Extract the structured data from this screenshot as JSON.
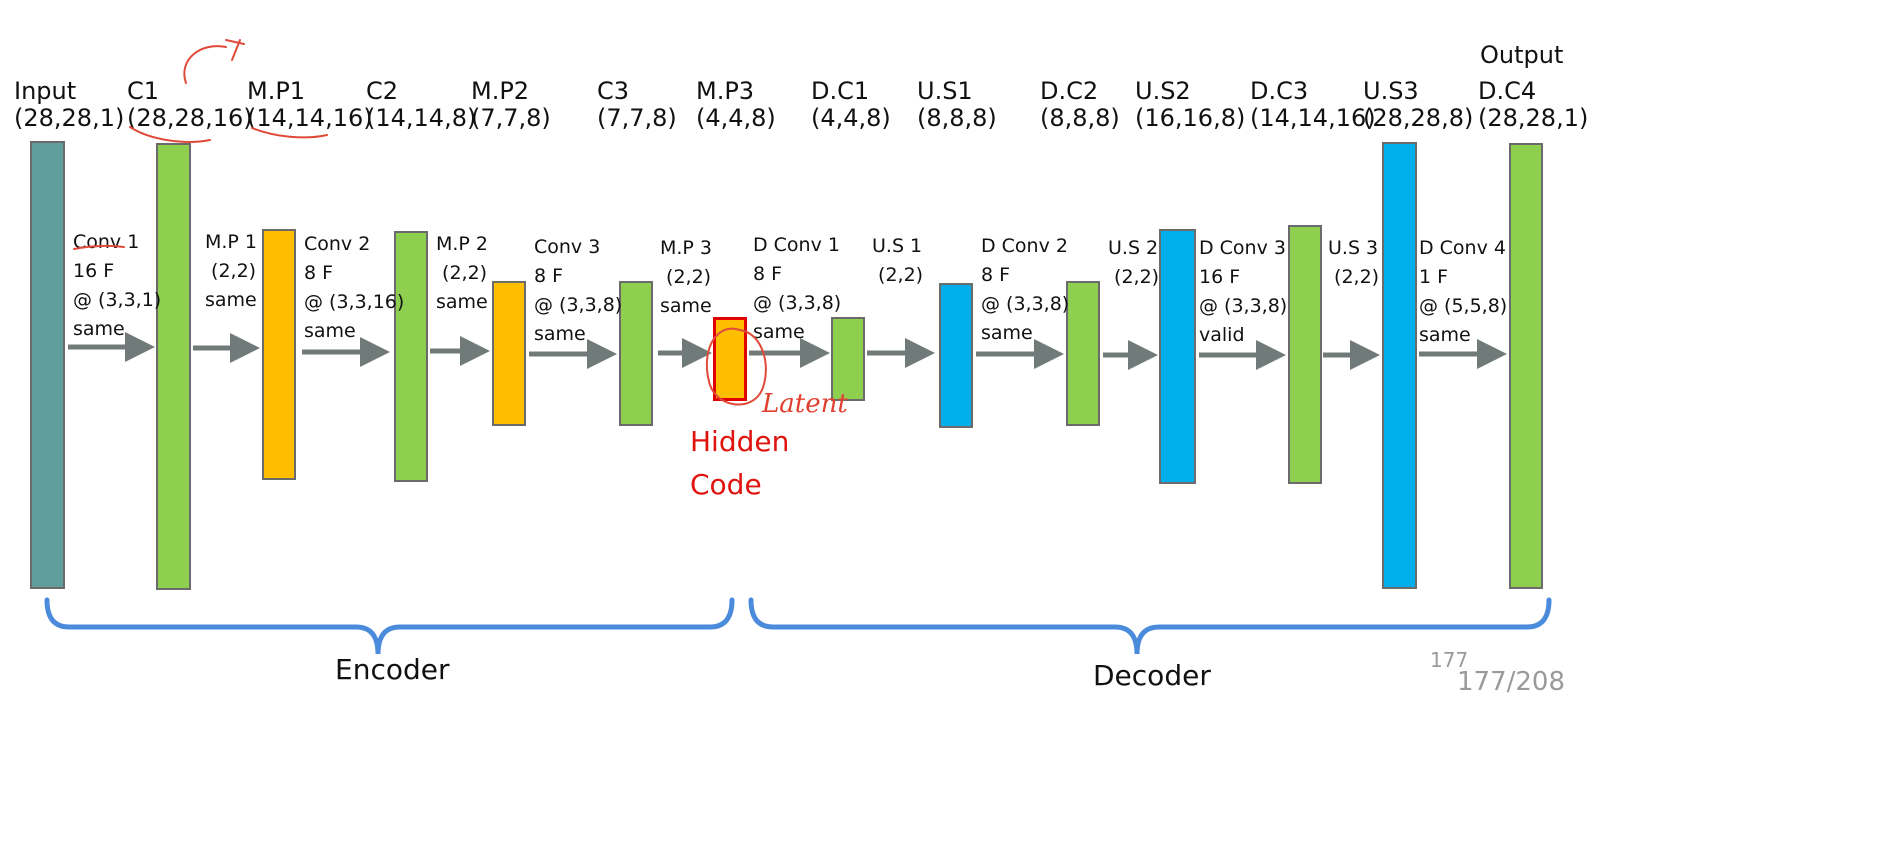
{
  "layers": [
    {
      "name": "Input",
      "dim": "(28,28,1)",
      "color": "teal"
    },
    {
      "name": "C1",
      "dim": "(28,28,16)",
      "color": "green"
    },
    {
      "name": "M.P1",
      "dim": "(14,14,16)",
      "color": "orange"
    },
    {
      "name": "C2",
      "dim": "(14,14,8)",
      "color": "green"
    },
    {
      "name": "M.P2",
      "dim": "(7,7,8)",
      "color": "orange"
    },
    {
      "name": "C3",
      "dim": "(7,7,8)",
      "color": "green"
    },
    {
      "name": "M.P3",
      "dim": "(4,4,8)",
      "color": "orange"
    },
    {
      "name": "D.C1",
      "dim": "(4,4,8)",
      "color": "green"
    },
    {
      "name": "U.S1",
      "dim": "(8,8,8)",
      "color": "blue"
    },
    {
      "name": "D.C2",
      "dim": "(8,8,8)",
      "color": "green"
    },
    {
      "name": "U.S2",
      "dim": "(16,16,8)",
      "color": "blue"
    },
    {
      "name": "D.C3",
      "dim": "(14,14,16)",
      "color": "green"
    },
    {
      "name": "U.S3",
      "dim": "(28,28,8)",
      "color": "blue"
    },
    {
      "name": "D.C4",
      "dim": "(28,28,1)",
      "color": "green"
    }
  ],
  "output_label": "Output",
  "operations": [
    "Conv 1\n16 F\n@ (3,3,1)\nsame",
    "M.P 1\n (2,2)\nsame",
    "Conv 2\n8 F\n@ (3,3,16)\nsame",
    "M.P 2\n (2,2)\nsame",
    "Conv 3\n8 F\n@ (3,3,8)\nsame",
    "M.P 3\n (2,2)\nsame",
    "D Conv 1\n8 F\n@ (3,3,8)\nsame",
    "U.S 1\n (2,2)",
    "D Conv 2\n8 F\n@ (3,3,8)\nsame",
    "U.S 2\n (2,2)",
    "D Conv 3\n16 F\n@ (3,3,8)\nvalid",
    "U.S 3\n (2,2)",
    "D Conv 4\n1 F\n@ (5,5,8)\nsame"
  ],
  "hidden_code": "Hidden\nCode",
  "annotations": {
    "latent": "Latent"
  },
  "groups": {
    "encoder": "Encoder",
    "decoder": "Decoder"
  },
  "page": {
    "small": "177",
    "full": "177/208"
  },
  "colors": {
    "teal": "#5f9e9a",
    "green": "#8fcf50",
    "orange": "#ffbf00",
    "blue": "#00aeeb",
    "arrow": "#707a78",
    "brace": "#4a8bdc",
    "hidden": "#e0140f"
  }
}
